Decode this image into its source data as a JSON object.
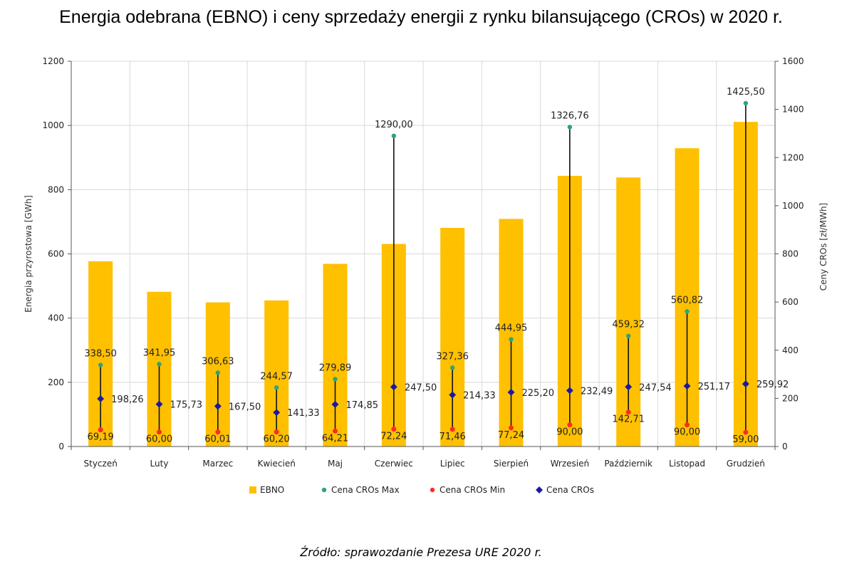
{
  "title": "Energia odebrana (EBNO) i ceny sprzedaży energii z rynku bilansującego (CROs) w 2020 r.",
  "source": "Źródło: sprawozdanie Prezesa URE 2020 r.",
  "colors": {
    "ebno": "#FFC000",
    "max": "#2EA37D",
    "min": "#FF2A2A",
    "cros": "#1A1AA0",
    "whisker": "#111111",
    "grid": "#D9D9D9"
  },
  "chart_data": {
    "type": "bar",
    "title": "Energia odebrana (EBNO) i ceny sprzedaży energii z rynku bilansującego (CROs) w 2020 r.",
    "categories": [
      "Styczeń",
      "Luty",
      "Marzec",
      "Kwiecień",
      "Maj",
      "Czerwiec",
      "Lipiec",
      "Sierpień",
      "Wrzesień",
      "Październik",
      "Listopad",
      "Grudzień"
    ],
    "left_axis": {
      "label": "Energia przyrostowa [GWh]",
      "min": 0,
      "max": 1200,
      "ticks": [
        "0",
        "200",
        "400",
        "600",
        "800",
        "1000",
        "1200"
      ]
    },
    "right_axis": {
      "label": "Ceny CROs [zł/MWh]",
      "min": 0,
      "max": 1600,
      "ticks": [
        "0",
        "200",
        "400",
        "600",
        "800",
        "1000",
        "1200",
        "1400",
        "1600"
      ]
    },
    "series": [
      {
        "name": "EBNO",
        "axis": "left",
        "kind": "bar",
        "values": [
          577,
          482,
          449,
          455,
          569,
          631,
          681,
          709,
          843,
          838,
          929,
          1011
        ]
      },
      {
        "name": "Cena CROs Max",
        "axis": "right",
        "kind": "point",
        "values": [
          338.5,
          341.95,
          306.63,
          244.57,
          279.89,
          1290.0,
          327.36,
          444.95,
          1326.76,
          459.32,
          560.82,
          1425.5
        ],
        "labels": [
          "338,50",
          "341,95",
          "306,63",
          "244,57",
          "279,89",
          "1290,00",
          "327,36",
          "444,95",
          "1326,76",
          "459,32",
          "560,82",
          "1425,50"
        ]
      },
      {
        "name": "Cena CROs Min",
        "axis": "right",
        "kind": "point",
        "values": [
          69.19,
          60.0,
          60.01,
          60.2,
          64.21,
          72.24,
          71.46,
          77.24,
          90.0,
          142.71,
          90.0,
          59.0
        ],
        "labels": [
          "69,19",
          "60,00",
          "60,01",
          "60,20",
          "64,21",
          "72,24",
          "71,46",
          "77,24",
          "90,00",
          "142,71",
          "90,00",
          "59,00"
        ]
      },
      {
        "name": "Cena CROs",
        "axis": "right",
        "kind": "point",
        "values": [
          198.26,
          175.73,
          167.5,
          141.33,
          174.85,
          247.5,
          214.33,
          225.2,
          232.49,
          247.54,
          251.17,
          259.92
        ],
        "labels": [
          "198,26",
          "175,73",
          "167,50",
          "141,33",
          "174,85",
          "247,50",
          "214,33",
          "225,20",
          "232,49",
          "247,54",
          "251,17",
          "259,92"
        ]
      }
    ],
    "legend": [
      "EBNO",
      "Cena CROs Max",
      "Cena CROs Min",
      "Cena CROs"
    ],
    "legend_position": "bottom",
    "grid": true
  }
}
